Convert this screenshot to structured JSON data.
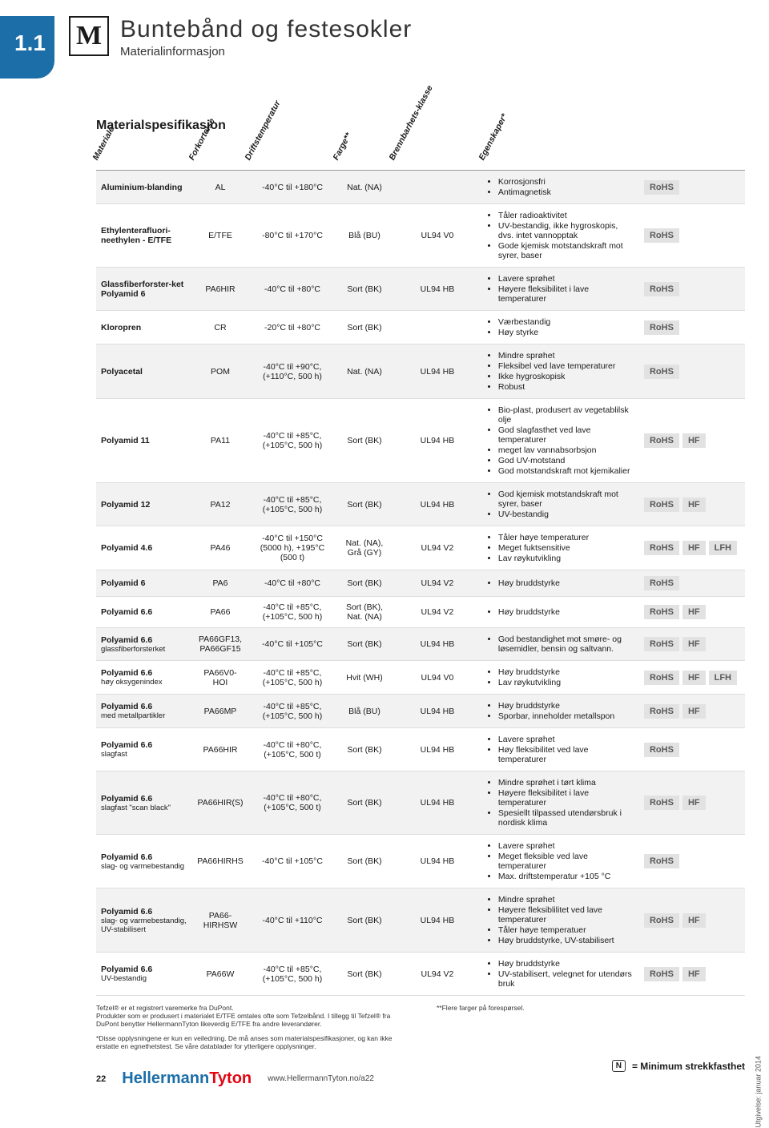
{
  "chapter": "1.1",
  "logo_letter": "M",
  "title_main": "Buntebånd og festesokler",
  "title_sub": "Materialinformasjon",
  "section_heading": "Materialspesifikasjon",
  "columns": [
    "Materiale",
    "Forkortelse",
    "Driftstemperatur",
    "Farge**",
    "Brennbarhets-klasse",
    "Egenskaper*"
  ],
  "badge_colors": {
    "bg": "#e2e2e2",
    "fg": "#5a5a5a"
  },
  "stripe_colors": [
    "#f2f2f2",
    "#ffffff"
  ],
  "rows": [
    {
      "material": "Aluminium-blanding",
      "sub": "",
      "abbr": "AL",
      "temp": "-40°C til +180°C",
      "color": "Nat. (NA)",
      "flame": "",
      "props": [
        "Korrosjonsfri",
        "Antimagnetisk"
      ],
      "badges": [
        "RoHS"
      ]
    },
    {
      "material": "Ethylenterafluori-neethylen - E/TFE",
      "sub": "",
      "abbr": "E/TFE",
      "temp": "-80°C til +170°C",
      "color": "Blå (BU)",
      "flame": "UL94 V0",
      "props": [
        "Tåler radioaktivitet",
        "UV-bestandig, ikke hygroskopis, dvs. intet vannopptak",
        "Gode kjemisk motstandskraft mot syrer, baser"
      ],
      "badges": [
        "RoHS"
      ]
    },
    {
      "material": "Glassfiberforster-ket Polyamid 6",
      "sub": "",
      "abbr": "PA6HIR",
      "temp": "-40°C til +80°C",
      "color": "Sort (BK)",
      "flame": "UL94 HB",
      "props": [
        "Lavere sprøhet",
        "Høyere fleksibilitet i lave temperaturer"
      ],
      "badges": [
        "RoHS"
      ]
    },
    {
      "material": "Kloropren",
      "sub": "",
      "abbr": "CR",
      "temp": "-20°C til +80°C",
      "color": "Sort (BK)",
      "flame": "",
      "props": [
        "Værbestandig",
        "Høy styrke"
      ],
      "badges": [
        "RoHS"
      ]
    },
    {
      "material": "Polyacetal",
      "sub": "",
      "abbr": "POM",
      "temp": "-40°C til +90°C, (+110°C, 500 h)",
      "color": "Nat. (NA)",
      "flame": "UL94 HB",
      "props": [
        "Mindre sprøhet",
        "Fleksibel ved lave temperaturer",
        "Ikke hygroskopisk",
        "Robust"
      ],
      "badges": [
        "RoHS"
      ]
    },
    {
      "material": "Polyamid 11",
      "sub": "",
      "abbr": "PA11",
      "temp": "-40°C til +85°C, (+105°C, 500 h)",
      "color": "Sort (BK)",
      "flame": "UL94 HB",
      "props": [
        "Bio-plast, produsert av vegetablilsk olje",
        "God slagfasthet ved lave temperaturer",
        "meget lav vannabsorbsjon",
        "God UV-motstand",
        "God motstandskraft mot kjemikalier"
      ],
      "badges": [
        "RoHS",
        "HF"
      ]
    },
    {
      "material": "Polyamid 12",
      "sub": "",
      "abbr": "PA12",
      "temp": "-40°C til +85°C, (+105°C, 500 h)",
      "color": "Sort (BK)",
      "flame": "UL94 HB",
      "props": [
        "God kjemisk motstandskraft mot syrer, baser",
        "UV-bestandig"
      ],
      "badges": [
        "RoHS",
        "HF"
      ]
    },
    {
      "material": "Polyamid 4.6",
      "sub": "",
      "abbr": "PA46",
      "temp": "-40°C til +150°C (5000 h), +195°C (500 t)",
      "color": "Nat. (NA), Grå (GY)",
      "flame": "UL94 V2",
      "props": [
        "Tåler høye temperaturer",
        "Meget fuktsensitive",
        "Lav røykutvikling"
      ],
      "badges": [
        "RoHS",
        "HF",
        "LFH"
      ]
    },
    {
      "material": "Polyamid 6",
      "sub": "",
      "abbr": "PA6",
      "temp": "-40°C til +80°C",
      "color": "Sort (BK)",
      "flame": "UL94 V2",
      "props": [
        "Høy bruddstyrke"
      ],
      "badges": [
        "RoHS"
      ]
    },
    {
      "material": "Polyamid 6.6",
      "sub": "",
      "abbr": "PA66",
      "temp": "-40°C til +85°C, (+105°C, 500 h)",
      "color": "Sort (BK), Nat. (NA)",
      "flame": "UL94 V2",
      "props": [
        "Høy bruddstyrke"
      ],
      "badges": [
        "RoHS",
        "HF"
      ]
    },
    {
      "material": "Polyamid 6.6",
      "sub": "glassfiberforsterket",
      "abbr": "PA66GF13, PA66GF15",
      "temp": "-40°C til +105°C",
      "color": "Sort (BK)",
      "flame": "UL94 HB",
      "props": [
        "God bestandighet mot smøre- og løsemidler, bensin og saltvann."
      ],
      "badges": [
        "RoHS",
        "HF"
      ]
    },
    {
      "material": "Polyamid 6.6",
      "sub": "høy oksygenindex",
      "abbr": "PA66V0-HOI",
      "temp": "-40°C til +85°C, (+105°C, 500 h)",
      "color": "Hvit (WH)",
      "flame": "UL94 V0",
      "props": [
        "Høy bruddstyrke",
        "Lav røykutvikling"
      ],
      "badges": [
        "RoHS",
        "HF",
        "LFH"
      ]
    },
    {
      "material": "Polyamid 6.6",
      "sub": "med metallpartikler",
      "abbr": "PA66MP",
      "temp": "-40°C til +85°C, (+105°C, 500 h)",
      "color": "Blå (BU)",
      "flame": "UL94 HB",
      "props": [
        "Høy bruddstyrke",
        "Sporbar, inneholder metallspon"
      ],
      "badges": [
        "RoHS",
        "HF"
      ]
    },
    {
      "material": "Polyamid 6.6",
      "sub": "slagfast",
      "abbr": "PA66HIR",
      "temp": "-40°C til +80°C, (+105°C, 500 t)",
      "color": "Sort (BK)",
      "flame": "UL94 HB",
      "props": [
        "Lavere sprøhet",
        "Høy fleksibilitet ved lave temperaturer"
      ],
      "badges": [
        "RoHS"
      ]
    },
    {
      "material": "Polyamid 6.6",
      "sub": "slagfast \"scan black\"",
      "abbr": "PA66HIR(S)",
      "temp": "-40°C til +80°C, (+105°C, 500 t)",
      "color": "Sort (BK)",
      "flame": "UL94 HB",
      "props": [
        "Mindre sprøhet i tørt klima",
        "Høyere fleksibilitet i lave temperaturer",
        "Spesiellt tilpassed utendørsbruk i nordisk klima"
      ],
      "badges": [
        "RoHS",
        "HF"
      ]
    },
    {
      "material": "Polyamid 6.6",
      "sub": "slag- og varmebestandig",
      "abbr": "PA66HIRHS",
      "temp": "-40°C til +105°C",
      "color": "Sort (BK)",
      "flame": "UL94 HB",
      "props": [
        "Lavere sprøhet",
        "Meget fleksible ved lave temperaturer",
        "Max. driftstemperatur +105 °C"
      ],
      "badges": [
        "RoHS"
      ]
    },
    {
      "material": "Polyamid 6.6",
      "sub": "slag- og varmebestandig, UV-stabilisert",
      "abbr": "PA66-HIRHSW",
      "temp": "-40°C til +110°C",
      "color": "Sort (BK)",
      "flame": "UL94 HB",
      "props": [
        "Mindre sprøhet",
        "Høyere fleksiblilitet ved lave temperaturer",
        "Tåler høye temperatuer",
        "Høy bruddstyrke, UV-stabilisert"
      ],
      "badges": [
        "RoHS",
        "HF"
      ]
    },
    {
      "material": "Polyamid 6.6",
      "sub": "UV-bestandig",
      "abbr": "PA66W",
      "temp": "-40°C til +85°C, (+105°C, 500 h)",
      "color": "Sort (BK)",
      "flame": "UL94 V2",
      "props": [
        "Høy bruddstyrke",
        "UV-stabilisert, velegnet for utendørs bruk"
      ],
      "badges": [
        "RoHS",
        "HF"
      ]
    }
  ],
  "footnote_left_1": "Tefzel® er et registrert varemerke fra DuPont.",
  "footnote_left_2": "Produkter som er produsert i materialet E/TFE omtales ofte som Tefzelbånd. I tillegg til Tefzel® fra DuPont benytter HellermannTyton likeverdig E/TFE fra andre leverandører.",
  "footnote_left_3": "*Disse opplysningene er kun en veiledning. De må anses som materialspesifikasjoner, og kan ikke erstatte en egnethetstest. Se våre datablader for ytterligere opplysninger.",
  "footnote_right": "**Flere farger på forespørsel.",
  "legend_text": "= Minimum strekkfasthet",
  "legend_icon": "N",
  "page_number": "22",
  "brand_1": "Hellermann",
  "brand_2": "Tyton",
  "url": "www.HellermannTyton.no/a22",
  "edition": "Utgivelse: januar 2014"
}
